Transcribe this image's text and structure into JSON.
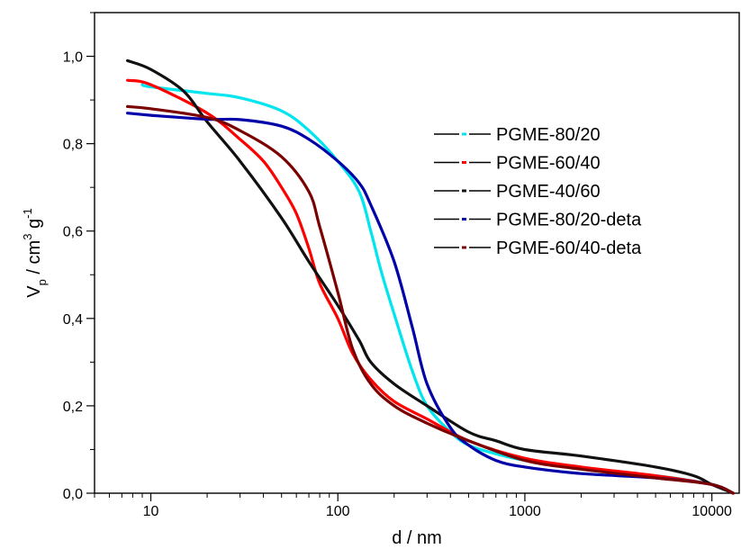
{
  "chart_data": {
    "type": "line",
    "xscale": "log",
    "xlim": [
      5,
      14000
    ],
    "ylim": [
      0,
      1.1
    ],
    "x_ticks": [
      10,
      100,
      1000,
      10000
    ],
    "x_tick_labels": [
      "10",
      "100",
      "1000",
      "10000"
    ],
    "y_ticks": [
      0,
      0.2,
      0.4,
      0.6,
      0.8,
      1.0
    ],
    "y_tick_labels": [
      "0,0",
      "0,2",
      "0,4",
      "0,6",
      "0,8",
      "1,0"
    ],
    "xlabel": "d / nm",
    "ylabel": {
      "base": "V",
      "sub": "p",
      "mid": " / cm",
      "sup1": "3",
      "tail": " g",
      "sup2": "-1"
    },
    "legend_position": "top-right",
    "series": [
      {
        "name": "PGME-80/20",
        "color": "#00e5ee",
        "x": [
          9,
          10,
          20,
          30,
          50,
          70,
          100,
          130,
          150,
          170,
          200,
          250,
          300,
          400,
          500,
          700,
          1000,
          2000,
          5000,
          10000,
          13000
        ],
        "y": [
          0.935,
          0.93,
          0.915,
          0.905,
          0.875,
          0.83,
          0.76,
          0.69,
          0.6,
          0.51,
          0.41,
          0.28,
          0.2,
          0.14,
          0.11,
          0.09,
          0.075,
          0.055,
          0.04,
          0.02,
          0.0
        ]
      },
      {
        "name": "PGME-60/40",
        "color": "#ff0000",
        "x": [
          7.5,
          10,
          20,
          30,
          40,
          50,
          60,
          70,
          80,
          100,
          120,
          150,
          200,
          300,
          500,
          1000,
          2000,
          5000,
          10000,
          13000
        ],
        "y": [
          0.945,
          0.935,
          0.87,
          0.81,
          0.76,
          0.7,
          0.64,
          0.56,
          0.48,
          0.4,
          0.32,
          0.26,
          0.21,
          0.17,
          0.12,
          0.08,
          0.06,
          0.04,
          0.02,
          0.0
        ]
      },
      {
        "name": "PGME-40/60",
        "color": "#111111",
        "x": [
          7.5,
          10,
          15,
          20,
          30,
          50,
          70,
          100,
          130,
          150,
          200,
          300,
          500,
          700,
          1000,
          2000,
          5000,
          8000,
          10000,
          13000
        ],
        "y": [
          0.99,
          0.97,
          0.92,
          0.85,
          0.76,
          0.63,
          0.53,
          0.43,
          0.35,
          0.3,
          0.25,
          0.2,
          0.14,
          0.12,
          0.1,
          0.085,
          0.06,
          0.04,
          0.02,
          0.0
        ]
      },
      {
        "name": "PGME-80/20-deta",
        "color": "#0000a8",
        "x": [
          7.5,
          10,
          20,
          30,
          50,
          70,
          100,
          130,
          150,
          200,
          250,
          300,
          400,
          500,
          700,
          1000,
          2000,
          5000,
          10000,
          13000
        ],
        "y": [
          0.87,
          0.865,
          0.856,
          0.855,
          0.84,
          0.81,
          0.76,
          0.71,
          0.66,
          0.53,
          0.38,
          0.25,
          0.15,
          0.11,
          0.075,
          0.06,
          0.045,
          0.035,
          0.02,
          0.0
        ]
      },
      {
        "name": "PGME-60/40-deta",
        "color": "#7a0000",
        "x": [
          7.5,
          10,
          20,
          30,
          50,
          70,
          80,
          100,
          120,
          150,
          200,
          300,
          500,
          1000,
          2000,
          5000,
          10000,
          13000
        ],
        "y": [
          0.885,
          0.88,
          0.86,
          0.83,
          0.77,
          0.69,
          0.61,
          0.46,
          0.33,
          0.25,
          0.2,
          0.16,
          0.12,
          0.075,
          0.055,
          0.035,
          0.02,
          0.0
        ]
      }
    ]
  }
}
